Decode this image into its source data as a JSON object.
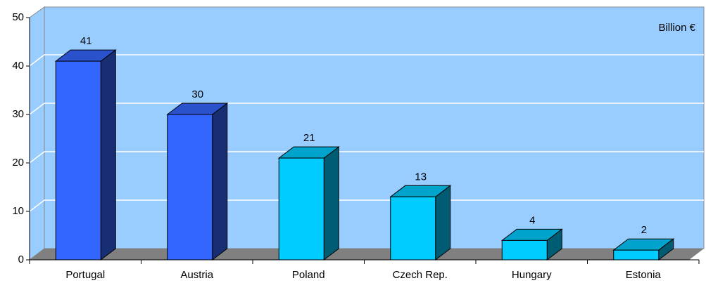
{
  "chart_data": {
    "type": "bar3d",
    "categories": [
      "Portugal",
      "Austria",
      "Poland",
      "Czech Rep.",
      "Hungary",
      "Estonia"
    ],
    "values": [
      41,
      30,
      21,
      13,
      4,
      2
    ],
    "colors": [
      "#3366ff",
      "#3366ff",
      "#00ccff",
      "#00ccff",
      "#00ccff",
      "#00ccff"
    ],
    "annotation": "Billion €",
    "ylim": [
      0,
      50
    ],
    "yticks": [
      0,
      10,
      20,
      30,
      40,
      50
    ],
    "grid": true
  }
}
